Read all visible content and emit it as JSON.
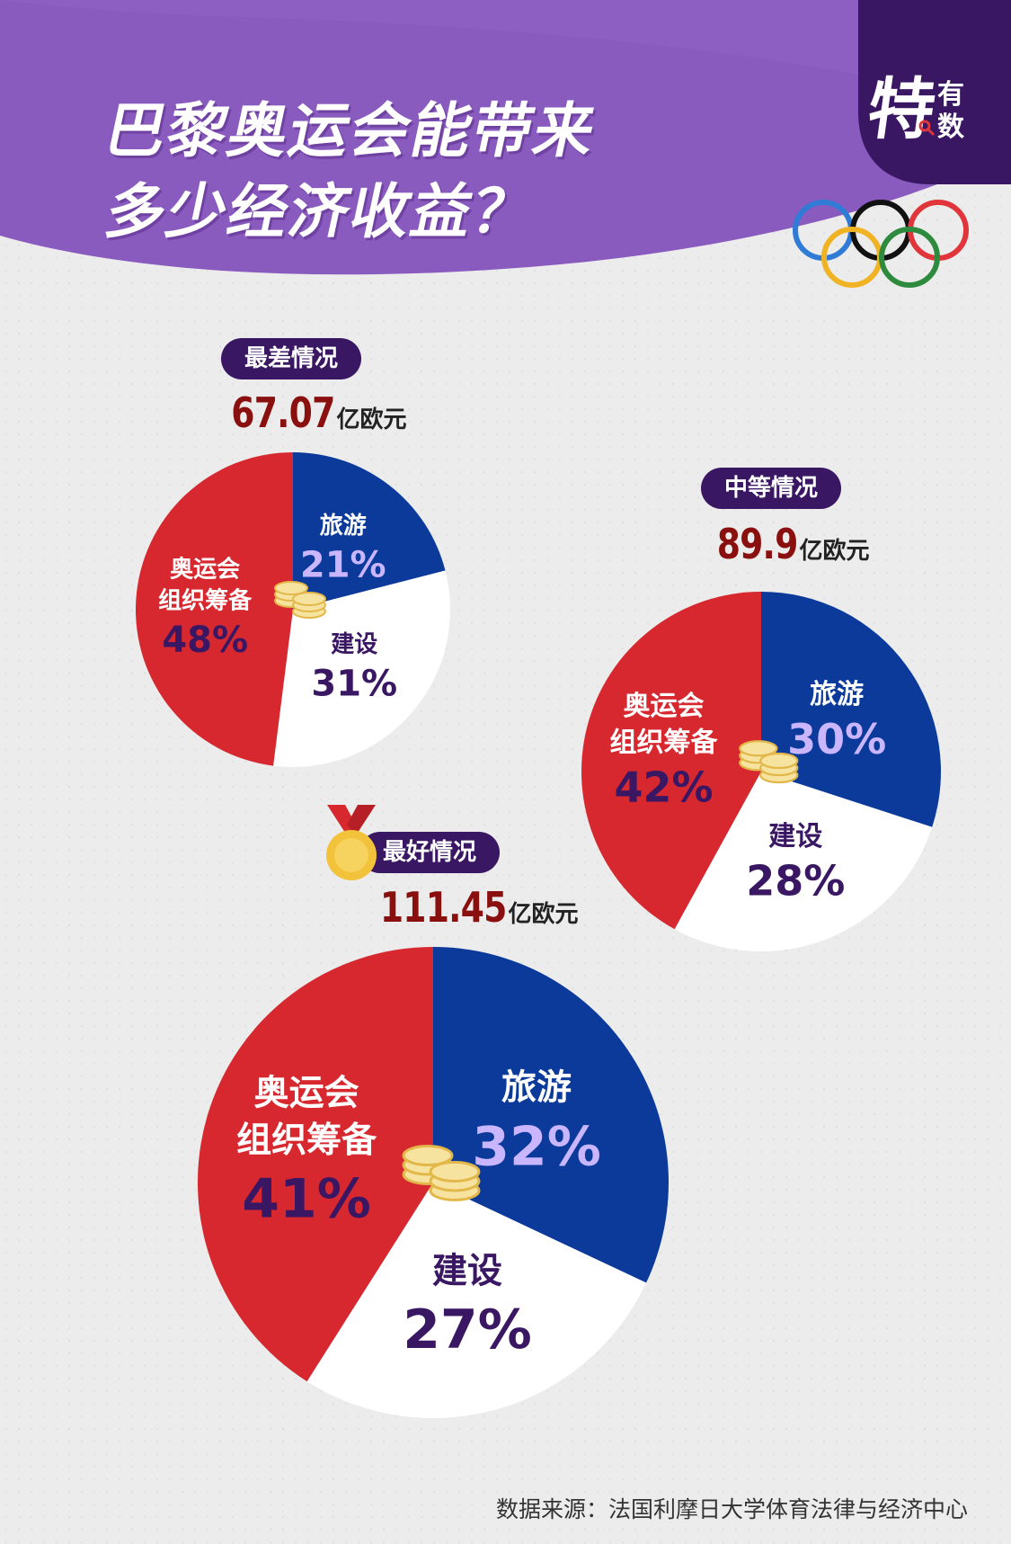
{
  "title": {
    "line1": "巴黎奥运会能带来",
    "line2": "多少经济收益？"
  },
  "brand": {
    "main": "特",
    "small1": "有",
    "small2": "数"
  },
  "colors": {
    "header_purple": "#8a5bbf",
    "badge_dark": "#3a1763",
    "tourism_blue": "#0b3a9b",
    "construction_white": "#ffffff",
    "organization_red": "#d7282f",
    "amount_red": "#8a1010",
    "pct_light": "#c9b6ff",
    "pct_dark": "#3a1763",
    "ring_blue": "#2f7bd6",
    "ring_black": "#111111",
    "ring_red": "#e0353b",
    "ring_yellow": "#f0b323",
    "ring_green": "#2e8b3d"
  },
  "icons": [
    "olympic-rings-icon",
    "coin-stack-icon",
    "gold-medal-icon"
  ],
  "chart_data": [
    {
      "type": "pie",
      "scenario": "最差情况",
      "total_value": "67.07",
      "total_unit": "亿欧元",
      "slices": [
        {
          "label": "旅游",
          "value": 21,
          "pct_text": "21%",
          "color": "#0b3a9b"
        },
        {
          "label": "建设",
          "value": 31,
          "pct_text": "31%",
          "color": "#ffffff"
        },
        {
          "label": "奥运会组织筹备",
          "label_lines": [
            "奥运会",
            "组织筹备"
          ],
          "value": 48,
          "pct_text": "48%",
          "color": "#d7282f"
        }
      ]
    },
    {
      "type": "pie",
      "scenario": "中等情况",
      "total_value": "89.9",
      "total_unit": "亿欧元",
      "slices": [
        {
          "label": "旅游",
          "value": 30,
          "pct_text": "30%",
          "color": "#0b3a9b"
        },
        {
          "label": "建设",
          "value": 28,
          "pct_text": "28%",
          "color": "#ffffff"
        },
        {
          "label": "奥运会组织筹备",
          "label_lines": [
            "奥运会",
            "组织筹备"
          ],
          "value": 42,
          "pct_text": "42%",
          "color": "#d7282f"
        }
      ]
    },
    {
      "type": "pie",
      "scenario": "最好情况",
      "total_value": "111.45",
      "total_unit": "亿欧元",
      "slices": [
        {
          "label": "旅游",
          "value": 32,
          "pct_text": "32%",
          "color": "#0b3a9b"
        },
        {
          "label": "建设",
          "value": 27,
          "pct_text": "27%",
          "color": "#ffffff"
        },
        {
          "label": "奥运会组织筹备",
          "label_lines": [
            "奥运会",
            "组织筹备"
          ],
          "value": 41,
          "pct_text": "41%",
          "color": "#d7282f"
        }
      ]
    }
  ],
  "source": "数据来源：法国利摩日大学体育法律与经济中心"
}
